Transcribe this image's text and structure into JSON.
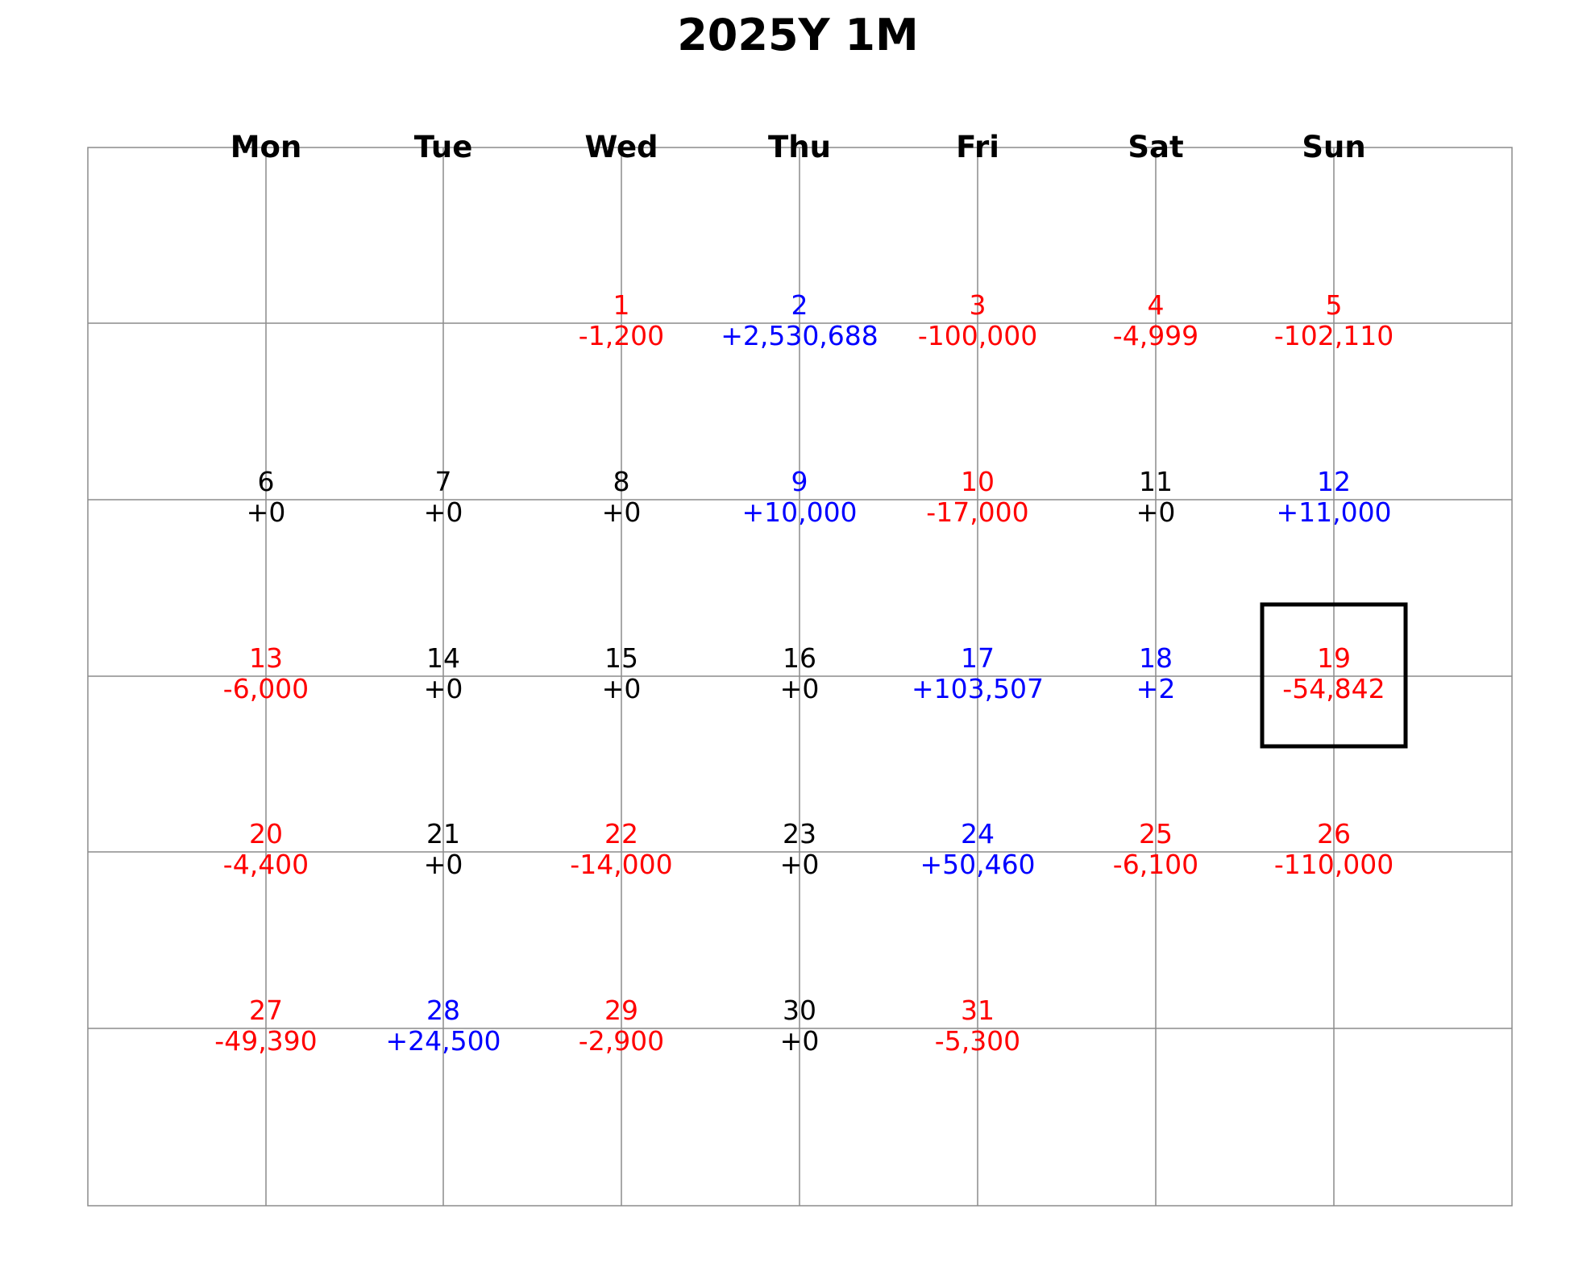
{
  "chart_data": {
    "type": "table",
    "title": "2025Y 1M",
    "weekdays": [
      "Mon",
      "Tue",
      "Wed",
      "Thu",
      "Fri",
      "Sat",
      "Sun"
    ],
    "colors": {
      "positive": "#0000ff",
      "negative": "#ff0000",
      "zero": "#000000",
      "grid": "#8c8c8c",
      "highlight": "#000000"
    },
    "highlighted_day": 19,
    "weeks": [
      [
        null,
        null,
        {
          "day": "1",
          "value": "-1,200",
          "sign": "negative"
        },
        {
          "day": "2",
          "value": "+2,530,688",
          "sign": "positive"
        },
        {
          "day": "3",
          "value": "-100,000",
          "sign": "negative"
        },
        {
          "day": "4",
          "value": "-4,999",
          "sign": "negative"
        },
        {
          "day": "5",
          "value": "-102,110",
          "sign": "negative"
        }
      ],
      [
        {
          "day": "6",
          "value": "+0",
          "sign": "zero"
        },
        {
          "day": "7",
          "value": "+0",
          "sign": "zero"
        },
        {
          "day": "8",
          "value": "+0",
          "sign": "zero"
        },
        {
          "day": "9",
          "value": "+10,000",
          "sign": "positive"
        },
        {
          "day": "10",
          "value": "-17,000",
          "sign": "negative"
        },
        {
          "day": "11",
          "value": "+0",
          "sign": "zero"
        },
        {
          "day": "12",
          "value": "+11,000",
          "sign": "positive"
        }
      ],
      [
        {
          "day": "13",
          "value": "-6,000",
          "sign": "negative"
        },
        {
          "day": "14",
          "value": "+0",
          "sign": "zero"
        },
        {
          "day": "15",
          "value": "+0",
          "sign": "zero"
        },
        {
          "day": "16",
          "value": "+0",
          "sign": "zero"
        },
        {
          "day": "17",
          "value": "+103,507",
          "sign": "positive"
        },
        {
          "day": "18",
          "value": "+2",
          "sign": "positive"
        },
        {
          "day": "19",
          "value": "-54,842",
          "sign": "negative"
        }
      ],
      [
        {
          "day": "20",
          "value": "-4,400",
          "sign": "negative"
        },
        {
          "day": "21",
          "value": "+0",
          "sign": "zero"
        },
        {
          "day": "22",
          "value": "-14,000",
          "sign": "negative"
        },
        {
          "day": "23",
          "value": "+0",
          "sign": "zero"
        },
        {
          "day": "24",
          "value": "+50,460",
          "sign": "positive"
        },
        {
          "day": "25",
          "value": "-6,100",
          "sign": "negative"
        },
        {
          "day": "26",
          "value": "-110,000",
          "sign": "negative"
        }
      ],
      [
        {
          "day": "27",
          "value": "-49,390",
          "sign": "negative"
        },
        {
          "day": "28",
          "value": "+24,500",
          "sign": "positive"
        },
        {
          "day": "29",
          "value": "-2,900",
          "sign": "negative"
        },
        {
          "day": "30",
          "value": "+0",
          "sign": "zero"
        },
        {
          "day": "31",
          "value": "-5,300",
          "sign": "negative"
        },
        null,
        null
      ]
    ]
  }
}
